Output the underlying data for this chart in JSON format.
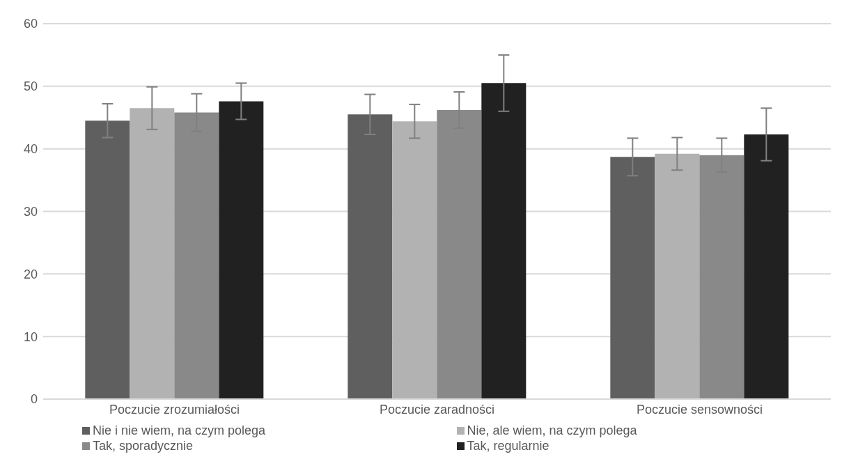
{
  "chart_data": {
    "type": "bar",
    "categories": [
      "Poczucie zrozumiałości",
      "Poczucie zaradności",
      "Poczucie sensowności"
    ],
    "series": [
      {
        "name": "Nie i nie wiem, na czym polega",
        "color": "#5f5f5f",
        "values": [
          44.5,
          45.5,
          38.7
        ],
        "errors": [
          2.7,
          3.2,
          3.0
        ]
      },
      {
        "name": "Nie, ale wiem, na czym polega",
        "color": "#b2b2b2",
        "values": [
          46.5,
          44.4,
          39.2
        ],
        "errors": [
          3.4,
          2.7,
          2.6
        ]
      },
      {
        "name": "Tak, sporadycznie",
        "color": "#898989",
        "values": [
          45.8,
          46.2,
          39.0
        ],
        "errors": [
          3.0,
          2.9,
          2.7
        ]
      },
      {
        "name": "Tak, regularnie",
        "color": "#212121",
        "values": [
          47.6,
          50.5,
          42.3
        ],
        "errors": [
          2.9,
          4.5,
          4.2
        ]
      }
    ],
    "ylim": [
      0,
      60
    ],
    "yticks": [
      0,
      10,
      20,
      30,
      40,
      50,
      60
    ],
    "grid": "y",
    "legend": "bottom"
  }
}
